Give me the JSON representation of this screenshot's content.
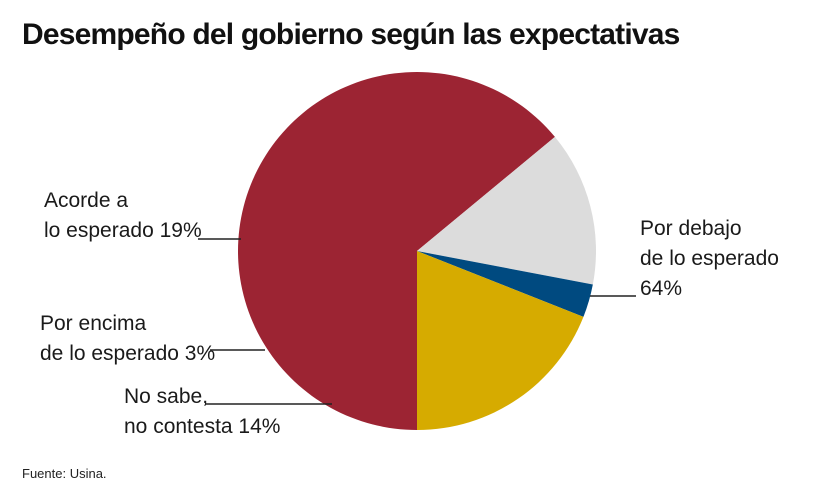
{
  "title": "Desempeño del gobierno según las expectativas",
  "source": "Fuente: Usina.",
  "colors": {
    "debajo": "#9c2433",
    "acorde": "#d6ab00",
    "encima": "#004a80",
    "nosabe": "#dcdcdc",
    "leader": "#222222"
  },
  "labels": {
    "debajo": [
      "Por debajo",
      "de lo esperado",
      "64%"
    ],
    "acorde": [
      "Acorde a",
      "lo esperado 19%"
    ],
    "encima": [
      "Por encima",
      "de lo esperado 3%"
    ],
    "nosabe": [
      "No sabe,",
      "no contesta 14%"
    ]
  },
  "chart_data": {
    "type": "pie",
    "title": "Desempeño del gobierno según las expectativas",
    "slices": [
      {
        "key": "debajo",
        "name": "Por debajo de lo esperado",
        "value": 64
      },
      {
        "key": "nosabe",
        "name": "No sabe, no contesta",
        "value": 14
      },
      {
        "key": "encima",
        "name": "Por encima de lo esperado",
        "value": 3
      },
      {
        "key": "acorde",
        "name": "Acorde a lo esperado",
        "value": 19
      }
    ],
    "start_direction": "clockwise from bottom",
    "legend": "none (direct labels)"
  }
}
